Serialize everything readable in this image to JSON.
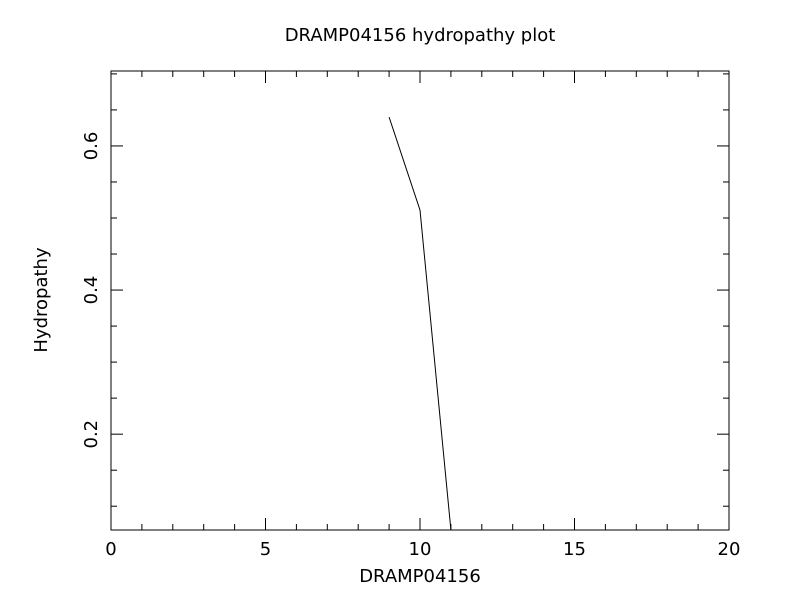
{
  "chart_data": {
    "type": "line",
    "title": "DRAMP04156 hydropathy plot",
    "x_label": "DRAMP04156",
    "y_label": "Hydropathy",
    "x": [
      9,
      10,
      11
    ],
    "series": [
      {
        "name": "DRAMP04156",
        "color": "#000000",
        "values": [
          0.64,
          0.511,
          0.067
        ]
      }
    ],
    "xlim": [
      0,
      20
    ],
    "xticks": [
      0,
      5,
      10,
      15,
      20
    ],
    "xminorticks": [
      1,
      2,
      3,
      4,
      6,
      7,
      8,
      9,
      11,
      12,
      13,
      14,
      16,
      17,
      18,
      19
    ],
    "ylim": [
      0.067,
      0.704
    ],
    "yticks": [
      0.2,
      0.4,
      0.6
    ],
    "yminorticks": [
      0.1,
      0.15,
      0.25,
      0.3,
      0.35,
      0.45,
      0.5,
      0.55,
      0.65,
      0.7
    ],
    "grid": false
  }
}
